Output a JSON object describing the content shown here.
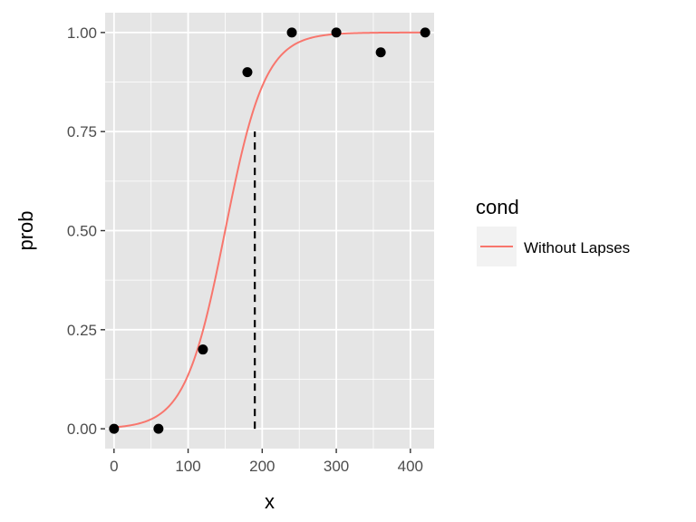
{
  "chart_data": {
    "type": "scatter",
    "xlabel": "x",
    "ylabel": "prob",
    "xlim": [
      -12,
      432
    ],
    "ylim": [
      -0.05,
      1.05
    ],
    "x_ticks": [
      0,
      100,
      200,
      300,
      400
    ],
    "y_ticks": [
      0.0,
      0.25,
      0.5,
      0.75,
      1.0
    ],
    "x_tick_labels": [
      "0",
      "100",
      "200",
      "300",
      "400"
    ],
    "y_tick_labels": [
      "0.00",
      "0.25",
      "0.50",
      "0.75",
      "1.00"
    ],
    "grid": true,
    "points": {
      "x": [
        0,
        60,
        120,
        180,
        240,
        300,
        360,
        420
      ],
      "y": [
        0.0,
        0.0,
        0.2,
        0.9,
        1.0,
        1.0,
        0.95,
        1.0
      ]
    },
    "curve": {
      "type": "logistic",
      "midpoint": 150,
      "scale": 27,
      "x_range": [
        0,
        420
      ]
    },
    "threshold_line": {
      "x": 190,
      "y_from": 0.0,
      "y_to": 0.75
    },
    "legend": {
      "title": "cond",
      "position": "right",
      "entries": [
        {
          "label": "Without Lapses",
          "color": "#F8766D"
        }
      ]
    },
    "colors": {
      "panel": "#E5E5E5",
      "grid": "#FFFFFF",
      "curve": "#F8766D",
      "points": "#000000",
      "dashed": "#000000"
    }
  }
}
